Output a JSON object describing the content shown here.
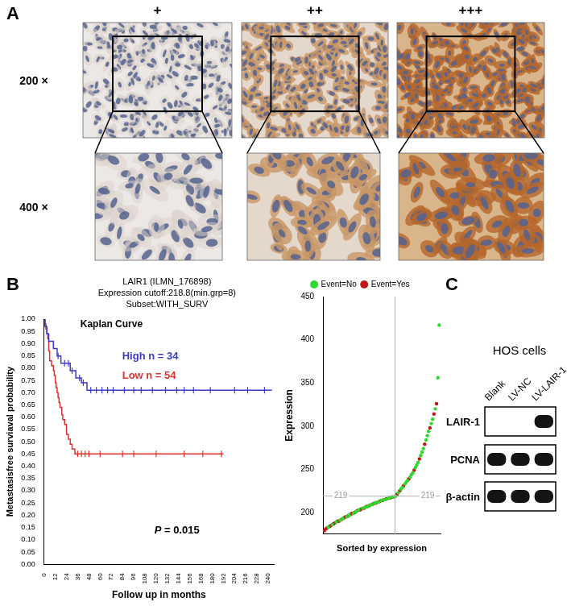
{
  "panel_a": {
    "label": "A",
    "columns": [
      "+",
      "++",
      "+++"
    ],
    "rows": [
      "200 ×",
      "400 ×"
    ]
  },
  "panel_b": {
    "label": "B"
  },
  "chart_data": [
    {
      "type": "line",
      "line_style": "step",
      "title": "Kaplan Curve",
      "subtitle": [
        "LAIR1 (ILMN_176898)",
        "Expression cutoff:218.8(min.grp=8)",
        "Subset:WITH_SURV"
      ],
      "x_label": "Follow up in months",
      "y_label": "Metastasisfree surviaval probability",
      "annotations": [
        "P = 0.015"
      ],
      "legend": "top",
      "grid": false,
      "xlim": [
        0,
        246
      ],
      "xticks": [
        0,
        12,
        24,
        36,
        48,
        60,
        72,
        84,
        96,
        108,
        120,
        132,
        144,
        156,
        168,
        180,
        192,
        204,
        216,
        228,
        240
      ],
      "ylim": [
        0,
        1
      ],
      "yticks": [
        {
          "value": 0,
          "label": "0.00"
        },
        0.05,
        {
          "value": 0.1,
          "label": "0.10"
        },
        0.15,
        {
          "value": 0.2,
          "label": "0.20"
        },
        0.25,
        {
          "value": 0.3,
          "label": "0.30"
        },
        0.35,
        {
          "value": 0.4,
          "label": "0.40"
        },
        0.45,
        {
          "value": 0.5,
          "label": "0.50"
        },
        0.55,
        {
          "value": 0.6,
          "label": "0.60"
        },
        0.65,
        {
          "value": 0.7,
          "label": "0.70"
        },
        0.75,
        {
          "value": 0.8,
          "label": "0.80"
        },
        0.85,
        {
          "value": 0.9,
          "label": "0.90"
        },
        0.95,
        {
          "value": 1,
          "label": "1.00"
        }
      ],
      "series": [
        {
          "name": "High n = 34",
          "color": "#3b3bc8",
          "x": [
            0,
            1,
            3,
            5,
            10,
            14,
            18,
            28,
            34,
            40,
            46,
            244
          ],
          "values": [
            1,
            0.97,
            0.94,
            0.91,
            0.88,
            0.85,
            0.82,
            0.79,
            0.76,
            0.74,
            0.71,
            0.71
          ],
          "censored_x": [
            15,
            22,
            26,
            30,
            38,
            42,
            50,
            56,
            62,
            68,
            74,
            86,
            96,
            104,
            116,
            130,
            142,
            150,
            160,
            178,
            204,
            218,
            236
          ],
          "censored_y": [
            0.85,
            0.82,
            0.82,
            0.79,
            0.76,
            0.74,
            0.71,
            0.71,
            0.71,
            0.71,
            0.71,
            0.71,
            0.71,
            0.71,
            0.71,
            0.71,
            0.71,
            0.71,
            0.71,
            0.71,
            0.71,
            0.71,
            0.71
          ]
        },
        {
          "name": "Low n = 54",
          "color": "#e0302a",
          "x": [
            0,
            1,
            2,
            3,
            4,
            5,
            6,
            8,
            10,
            11,
            12,
            13,
            14,
            15,
            16,
            17,
            19,
            20,
            22,
            24,
            26,
            28,
            30,
            33,
            192
          ],
          "values": [
            1,
            0.98,
            0.96,
            0.94,
            0.92,
            0.87,
            0.83,
            0.81,
            0.79,
            0.77,
            0.74,
            0.72,
            0.7,
            0.68,
            0.66,
            0.64,
            0.61,
            0.59,
            0.57,
            0.53,
            0.51,
            0.49,
            0.47,
            0.45,
            0.45
          ],
          "censored_x": [
            36,
            40,
            44,
            48,
            60,
            84,
            96,
            120,
            150,
            170,
            190
          ],
          "censored_y": [
            0.45,
            0.45,
            0.45,
            0.45,
            0.45,
            0.45,
            0.45,
            0.45,
            0.45,
            0.45,
            0.45
          ]
        }
      ]
    },
    {
      "type": "scatter",
      "x_label": "Sorted by expression",
      "y_label": "Expression",
      "legend": "top",
      "grid": false,
      "tick_labels": "y",
      "xlim": [
        0,
        89
      ],
      "xticks": [],
      "ylim": [
        175,
        450
      ],
      "yticks": [
        200,
        250,
        300,
        350,
        400,
        450
      ],
      "cutoff": {
        "x": 54.5,
        "y": 219
      },
      "series": [
        {
          "name": "Event=No",
          "color": "#2ed82e",
          "marker": "circle",
          "x": [
            4,
            7,
            10,
            13,
            15,
            18,
            20,
            23,
            25,
            27,
            30,
            32,
            34,
            36,
            37,
            39,
            41,
            42,
            44,
            46,
            47,
            49,
            50,
            52,
            54,
            55,
            57,
            59,
            60,
            62,
            63,
            64,
            66,
            67,
            68,
            70,
            71,
            72,
            74,
            75,
            76,
            78,
            79,
            80,
            82,
            83,
            85,
            87,
            88
          ],
          "values": [
            183,
            186,
            189,
            191,
            193,
            195,
            197,
            199,
            201,
            203,
            205,
            206,
            207,
            209,
            209,
            211,
            212,
            212,
            214,
            215,
            215,
            216,
            217,
            218,
            218,
            219,
            223,
            227,
            229,
            233,
            235,
            237,
            241,
            244,
            246,
            252,
            255,
            258,
            266,
            270,
            274,
            284,
            289,
            294,
            303,
            308,
            320,
            356,
            417
          ]
        },
        {
          "name": "Event=Yes",
          "color": "#c01818",
          "marker": "circle",
          "x": [
            1,
            2,
            3,
            5,
            6,
            8,
            9,
            11,
            12,
            14,
            16,
            17,
            19,
            21,
            22,
            24,
            26,
            28,
            29,
            31,
            33,
            35,
            38,
            40,
            43,
            45,
            48,
            51,
            53,
            56,
            58,
            61,
            65,
            69,
            73,
            77,
            81,
            84,
            86
          ],
          "values": [
            179,
            181,
            182,
            184,
            185,
            187,
            188,
            190,
            190,
            192,
            194,
            195,
            196,
            198,
            199,
            200,
            202,
            203,
            204,
            205,
            207,
            208,
            210,
            211,
            213,
            214,
            216,
            217,
            218,
            221,
            225,
            231,
            239,
            249,
            262,
            279,
            298,
            314,
            326
          ]
        }
      ]
    }
  ],
  "panel_c": {
    "label": "C",
    "title": "HOS cells",
    "lanes": [
      "Blank",
      "LV-NC",
      "LV-LAIR-1"
    ],
    "proteins": [
      "LAIR-1",
      "PCNA",
      "β-actin"
    ],
    "bands": [
      [
        0,
        0,
        1
      ],
      [
        1,
        1,
        1
      ],
      [
        1,
        1,
        1
      ]
    ]
  }
}
